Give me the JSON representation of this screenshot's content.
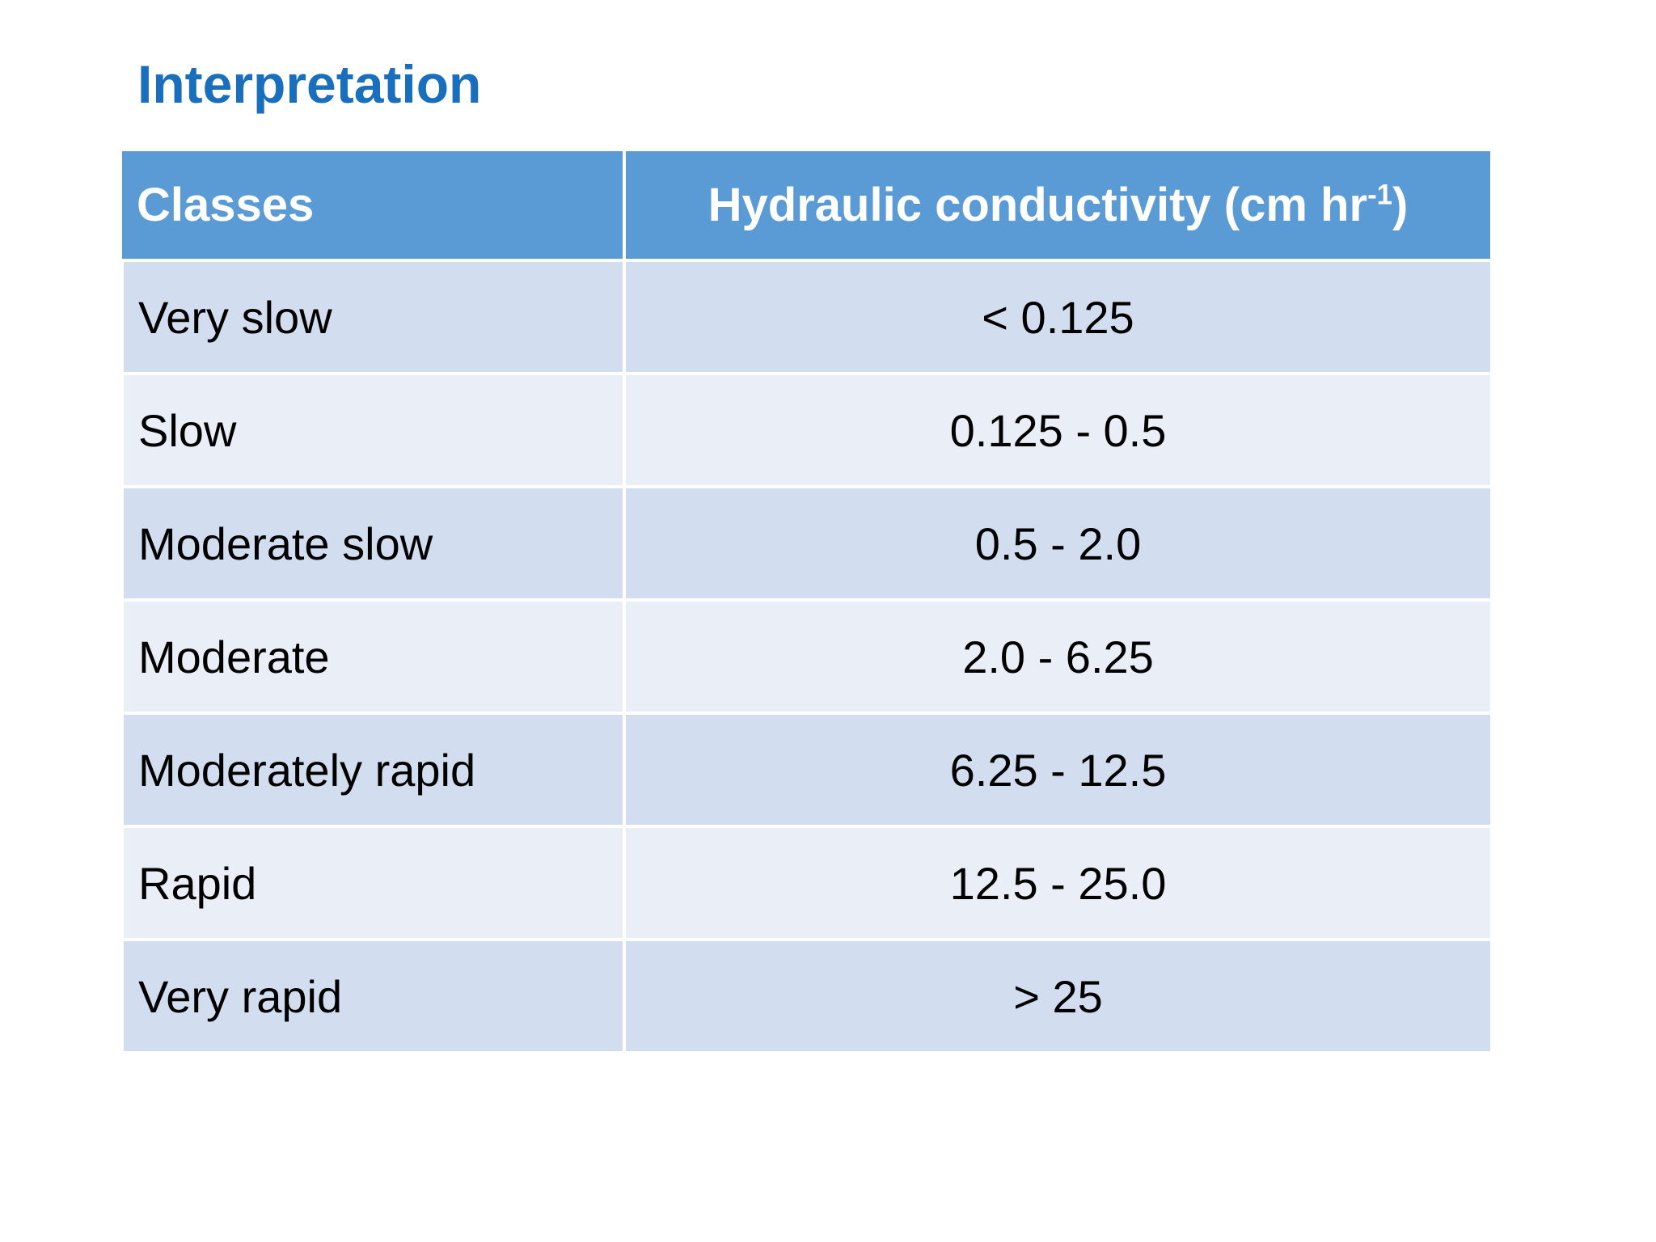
{
  "title": "Interpretation",
  "table": {
    "header": [
      "Classes",
      {
        "text": "Hydraulic conductivity (cm hr",
        "superscript": "-1",
        "suffix": ")"
      }
    ],
    "rows": [
      [
        "Very slow",
        "< 0.125"
      ],
      [
        "Slow",
        "0.125 - 0.5"
      ],
      [
        "Moderate slow",
        "0.5 - 2.0"
      ],
      [
        "Moderate",
        "2.0 - 6.25"
      ],
      [
        "Moderately rapid",
        "6.25 - 12.5"
      ],
      [
        "Rapid",
        "12.5 - 25.0"
      ],
      [
        "Very rapid",
        "> 25"
      ]
    ]
  }
}
